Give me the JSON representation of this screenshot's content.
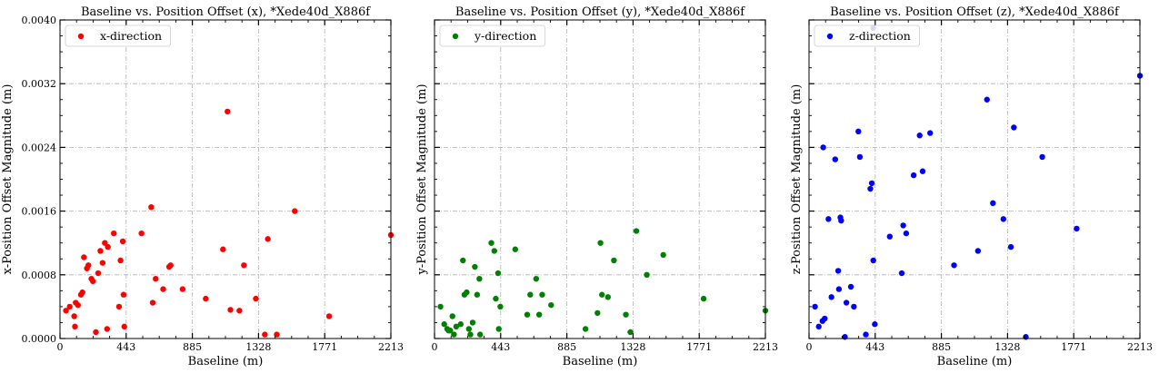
{
  "chart_data": [
    {
      "type": "scatter",
      "title": "Baseline vs. Position Offset (x), *Xede40d_X886f",
      "xlabel": "Baseline (m)",
      "ylabel": "x-Position Offset Magnitude (m)",
      "xlim": [
        0,
        2213
      ],
      "ylim": [
        0,
        0.004
      ],
      "xticks": [
        "0",
        "443",
        "885",
        "1328",
        "1771",
        "2213"
      ],
      "yticks": [
        "0.0000",
        "0.0008",
        "0.0016",
        "0.0024",
        "0.0032",
        "0.0040"
      ],
      "grid": true,
      "legend": "top-left",
      "showYTickLabels": true,
      "series": [
        {
          "name": "x-direction",
          "color": "#ff0000",
          "points": [
            [
              40,
              0.00035
            ],
            [
              65,
              0.0004
            ],
            [
              95,
              0.00028
            ],
            [
              100,
              0.00015
            ],
            [
              105,
              0.00045
            ],
            [
              120,
              0.00042
            ],
            [
              140,
              0.00055
            ],
            [
              150,
              0.00058
            ],
            [
              160,
              0.00102
            ],
            [
              180,
              0.00088
            ],
            [
              190,
              0.00092
            ],
            [
              210,
              0.00075
            ],
            [
              220,
              0.00072
            ],
            [
              240,
              8e-05
            ],
            [
              255,
              0.00082
            ],
            [
              270,
              0.0011
            ],
            [
              285,
              0.00095
            ],
            [
              300,
              0.0012
            ],
            [
              315,
              0.00012
            ],
            [
              320,
              0.00115
            ],
            [
              360,
              0.00132
            ],
            [
              395,
              0.0004
            ],
            [
              405,
              0.00098
            ],
            [
              420,
              0.00122
            ],
            [
              430,
              0.00015
            ],
            [
              425,
              0.00055
            ],
            [
              545,
              0.00132
            ],
            [
              610,
              0.00165
            ],
            [
              620,
              0.00045
            ],
            [
              640,
              0.00075
            ],
            [
              690,
              0.00062
            ],
            [
              730,
              0.0009
            ],
            [
              740,
              0.00092
            ],
            [
              820,
              0.00062
            ],
            [
              975,
              0.0005
            ],
            [
              1090,
              0.00112
            ],
            [
              1120,
              0.00285
            ],
            [
              1140,
              0.00036
            ],
            [
              1200,
              0.00035
            ],
            [
              1230,
              0.00092
            ],
            [
              1310,
              0.0005
            ],
            [
              1370,
              5e-05
            ],
            [
              1390,
              0.00125
            ],
            [
              1450,
              5e-05
            ],
            [
              1570,
              0.0016
            ],
            [
              1800,
              0.00028
            ],
            [
              2213,
              0.0013
            ]
          ]
        }
      ]
    },
    {
      "type": "scatter",
      "title": "Baseline vs. Position Offset (y), *Xede40d_X886f",
      "xlabel": "Baseline (m)",
      "ylabel": "y-Position Offset Magnitude (m)",
      "xlim": [
        0,
        2213
      ],
      "ylim": [
        0,
        0.004
      ],
      "xticks": [
        "0",
        "443",
        "885",
        "1328",
        "1771",
        "2213"
      ],
      "yticks": [
        "",
        "",
        "",
        "",
        "",
        ""
      ],
      "grid": true,
      "legend": "top-left",
      "showYTickLabels": false,
      "series": [
        {
          "name": "y-direction",
          "color": "#008000",
          "points": [
            [
              40,
              0.0004
            ],
            [
              65,
              0.00018
            ],
            [
              85,
              0.00012
            ],
            [
              95,
              0.0001
            ],
            [
              105,
              0.0001
            ],
            [
              120,
              0.00028
            ],
            [
              130,
              5e-05
            ],
            [
              145,
              0.00015
            ],
            [
              175,
              0.00018
            ],
            [
              190,
              0.00098
            ],
            [
              200,
              0.00055
            ],
            [
              215,
              0.00058
            ],
            [
              230,
              0.00012
            ],
            [
              240,
              5e-05
            ],
            [
              255,
              0.0002
            ],
            [
              270,
              0.0009
            ],
            [
              285,
              0.00055
            ],
            [
              300,
              0.00075
            ],
            [
              305,
              5e-05
            ],
            [
              380,
              0.0012
            ],
            [
              400,
              0.0011
            ],
            [
              410,
              0.0005
            ],
            [
              425,
              0.00082
            ],
            [
              430,
              0.00012
            ],
            [
              440,
              0.0004
            ],
            [
              540,
              0.00112
            ],
            [
              620,
              0.0003
            ],
            [
              640,
              0.00055
            ],
            [
              680,
              0.00075
            ],
            [
              700,
              0.0003
            ],
            [
              720,
              0.00055
            ],
            [
              780,
              0.00042
            ],
            [
              1010,
              0.00012
            ],
            [
              1090,
              0.00032
            ],
            [
              1110,
              0.0012
            ],
            [
              1120,
              0.00055
            ],
            [
              1160,
              0.00052
            ],
            [
              1200,
              0.00098
            ],
            [
              1280,
              0.0003
            ],
            [
              1310,
              8e-05
            ],
            [
              1350,
              0.00135
            ],
            [
              1420,
              0.0008
            ],
            [
              1530,
              0.00105
            ],
            [
              1800,
              0.0005
            ],
            [
              2213,
              0.00035
            ]
          ]
        }
      ]
    },
    {
      "type": "scatter",
      "title": "Baseline vs. Position Offset (z), *Xede40d_X886f",
      "xlabel": "Baseline (m)",
      "ylabel": "z-Position Offset Magnitude (m)",
      "xlim": [
        0,
        2213
      ],
      "ylim": [
        0,
        0.004
      ],
      "xticks": [
        "0",
        "443",
        "885",
        "1328",
        "1771",
        "2213"
      ],
      "yticks": [
        "",
        "",
        "",
        "",
        "",
        ""
      ],
      "grid": true,
      "legend": "top-left",
      "showYTickLabels": false,
      "series": [
        {
          "name": "z-direction",
          "color": "#0000ff",
          "points": [
            [
              40,
              0.0004
            ],
            [
              65,
              0.00015
            ],
            [
              90,
              0.00022
            ],
            [
              95,
              0.0024
            ],
            [
              105,
              0.00025
            ],
            [
              130,
              0.0015
            ],
            [
              150,
              0.00052
            ],
            [
              175,
              0.00225
            ],
            [
              195,
              0.00085
            ],
            [
              200,
              0.00062
            ],
            [
              210,
              0.00152
            ],
            [
              215,
              0.00148
            ],
            [
              240,
              2e-05
            ],
            [
              250,
              0.00045
            ],
            [
              280,
              0.00065
            ],
            [
              300,
              0.0004
            ],
            [
              330,
              0.0026
            ],
            [
              340,
              0.00228
            ],
            [
              380,
              5e-05
            ],
            [
              410,
              0.00188
            ],
            [
              420,
              0.00195
            ],
            [
              440,
              0.00018
            ],
            [
              430,
              0.00098
            ],
            [
              430,
              0.0039
            ],
            [
              540,
              0.00128
            ],
            [
              620,
              0.00082
            ],
            [
              630,
              0.00142
            ],
            [
              650,
              0.00132
            ],
            [
              700,
              0.00205
            ],
            [
              740,
              0.00255
            ],
            [
              760,
              0.0021
            ],
            [
              810,
              0.00258
            ],
            [
              970,
              0.00092
            ],
            [
              1130,
              0.0011
            ],
            [
              1190,
              0.003
            ],
            [
              1230,
              0.0017
            ],
            [
              1300,
              0.0015
            ],
            [
              1350,
              0.00115
            ],
            [
              1370,
              0.00265
            ],
            [
              1450,
              2e-05
            ],
            [
              1560,
              0.00228
            ],
            [
              1790,
              0.00138
            ],
            [
              2213,
              0.0033
            ]
          ]
        }
      ]
    }
  ]
}
